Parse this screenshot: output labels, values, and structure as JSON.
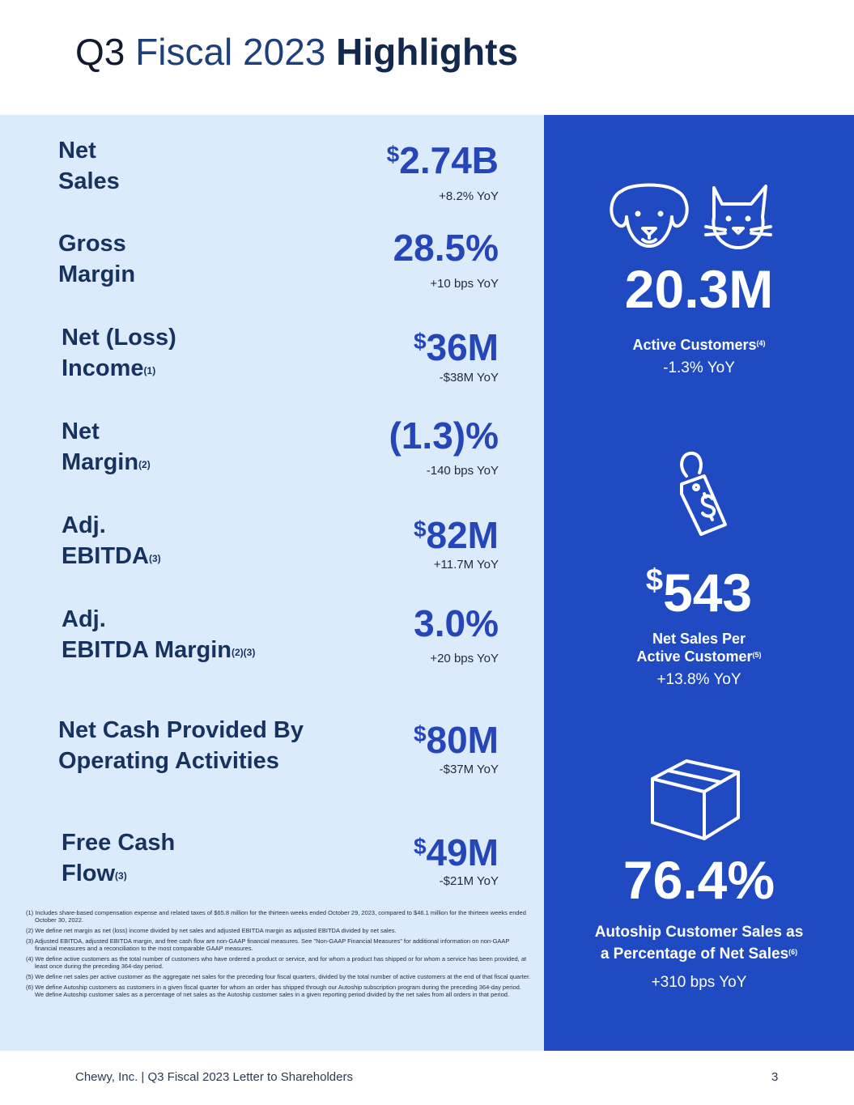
{
  "title": {
    "q": "Q3",
    "fiscal": "Fiscal 2023",
    "highlights": "Highlights"
  },
  "metrics": [
    {
      "label1": "Net",
      "label2": "Sales",
      "sup": "",
      "currency": "$",
      "value": "2.74B",
      "delta": "+8.2% YoY"
    },
    {
      "label1": "Gross",
      "label2": "Margin",
      "sup": "",
      "currency": "",
      "value": "28.5%",
      "delta": "+10 bps YoY"
    },
    {
      "label1": "Net (Loss)",
      "label2": "Income",
      "sup": "(1)",
      "currency": "$",
      "value": "36M",
      "delta": "-$38M YoY"
    },
    {
      "label1": "Net",
      "label2": "Margin",
      "sup": "(2)",
      "currency": "",
      "value": "(1.3)%",
      "delta": "-140 bps YoY"
    },
    {
      "label1": "Adj.",
      "label2": "EBITDA",
      "sup": "(3)",
      "currency": "$",
      "value": "82M",
      "delta": "+11.7M YoY"
    },
    {
      "label1": "Adj.",
      "label2": "EBITDA Margin",
      "sup": "(2)(3)",
      "currency": "",
      "value": "3.0%",
      "delta": "+20 bps YoY"
    },
    {
      "label1": "Net Cash Provided By",
      "label2": "Operating Activities",
      "sup": "",
      "currency": "$",
      "value": "80M",
      "delta": "-$37M YoY"
    },
    {
      "label1": "Free Cash",
      "label2": "Flow",
      "sup": "(3)",
      "currency": "$",
      "value": "49M",
      "delta": "-$21M YoY"
    }
  ],
  "right": {
    "active_customers": {
      "value": "20.3M",
      "label": "Active Customers",
      "sup": "(4)",
      "delta": "-1.3% YoY"
    },
    "net_sales_per": {
      "currency": "$",
      "value": "543",
      "label1": "Net Sales Per",
      "label2": "Active Customer",
      "sup": "(5)",
      "delta": "+13.8% YoY"
    },
    "autoship": {
      "value": "76.4%",
      "label1": "Autoship Customer Sales as",
      "label2": "a Percentage of Net Sales",
      "sup": "(6)",
      "delta": "+310 bps YoY"
    }
  },
  "footnotes": [
    "(1) Includes share-based compensation expense and related taxes of $65.8 million for the thirteen weeks ended October 29, 2023, compared to $46.1 million for the thirteen weeks ended October 30, 2022.",
    "(2) We define net margin as net (loss) income divided by net sales and adjusted EBITDA margin as adjusted EBITDA divided by net sales.",
    "(3) Adjusted EBITDA, adjusted EBITDA margin, and free cash flow are non-GAAP financial measures. See \"Non-GAAP Financial Measures\" for additional information on non-GAAP financial measures and a reconciliation to the most comparable GAAP measures.",
    "(4) We define active customers as the total number of customers who have ordered a product or service, and for whom a product has shipped or for whom a service has been provided, at least once during the preceding 364-day period.",
    "(5) We define net sales per active customer as the aggregate net sales for the preceding four fiscal quarters, divided by the total number of active customers at the end of that fiscal quarter.",
    "(6) We define Autoship customers as customers in a given fiscal quarter for whom an order has shipped through our Autoship subscription program during the preceding 364-day period. We define Autoship customer sales as a percentage of net sales as the Autoship customer sales in a given reporting period divided by the net sales from all orders in that period."
  ],
  "footer": {
    "text": "Chewy, Inc. | Q3 Fiscal 2023 Letter to Shareholders",
    "page": "3"
  }
}
